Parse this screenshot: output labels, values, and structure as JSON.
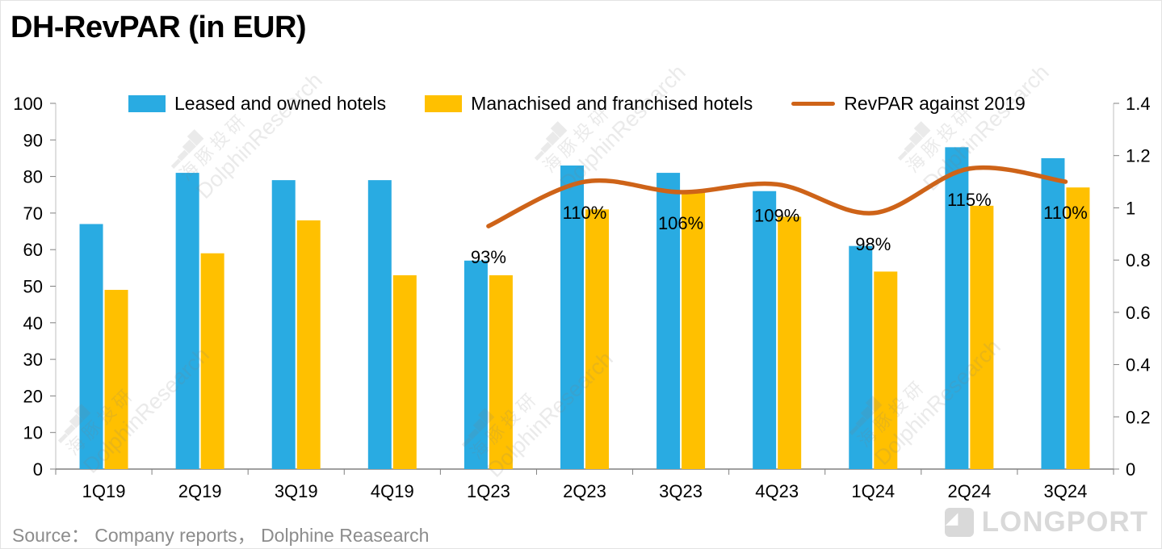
{
  "title": "DH-RevPAR (in EUR)",
  "source": "Source：  Company reports，  Dolphine Reasearch",
  "watermark": {
    "icon": "▂▃▅▇",
    "cn": "海豚投研",
    "en": "DolphinResearch"
  },
  "logo": {
    "text": "LONGPORT"
  },
  "chart_data": {
    "type": "bar",
    "title": "DH-RevPAR (in EUR)",
    "categories": [
      "1Q19",
      "2Q19",
      "3Q19",
      "4Q19",
      "1Q23",
      "2Q23",
      "3Q23",
      "4Q23",
      "1Q24",
      "2Q24",
      "3Q24"
    ],
    "series": [
      {
        "name": "Leased and owned hotels",
        "type": "bar",
        "axis": "left",
        "color": "#29ABE2",
        "values": [
          67,
          81,
          79,
          79,
          57,
          83,
          81,
          76,
          61,
          88,
          85
        ]
      },
      {
        "name": "Manachised and franchised hotels",
        "type": "bar",
        "axis": "left",
        "color": "#FFC000",
        "values": [
          49,
          59,
          68,
          53,
          53,
          71,
          76,
          69,
          54,
          72,
          77
        ]
      },
      {
        "name": "RevPAR against 2019",
        "type": "line",
        "axis": "right",
        "color": "#CE6318",
        "values": [
          null,
          null,
          null,
          null,
          0.93,
          1.1,
          1.06,
          1.09,
          0.98,
          1.15,
          1.1
        ],
        "point_labels": [
          null,
          null,
          null,
          null,
          "93%",
          "110%",
          "106%",
          "109%",
          "98%",
          "115%",
          "110%"
        ]
      }
    ],
    "left_axis": {
      "min": 0,
      "max": 100,
      "step": 10
    },
    "right_axis": {
      "min": 0,
      "max": 1.4,
      "step": 0.2
    },
    "grid": false,
    "legend_position": "top"
  }
}
